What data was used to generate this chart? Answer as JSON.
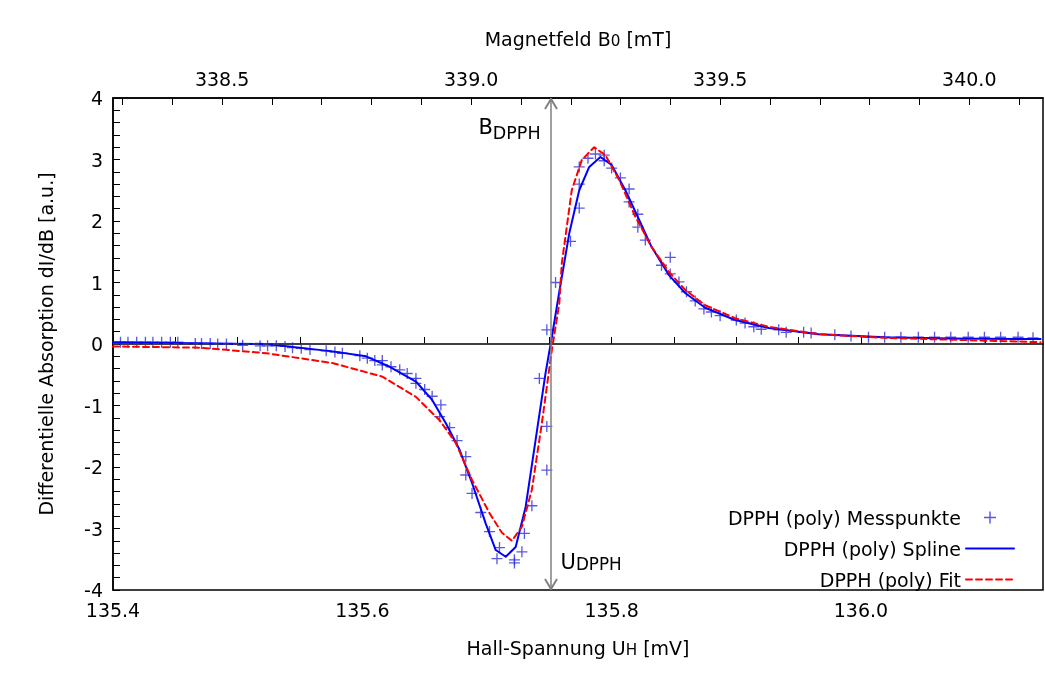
{
  "chart_data": {
    "type": "line",
    "xlabel": "Hall-Spannung U$_{H}$ [mV]",
    "x2label": "Magnetfeld B$_{0}$ [mT]",
    "ylabel": "Differentielle Absorption dI/dB [a.u.]",
    "xlim": [
      135.4,
      136.146
    ],
    "xticks": [
      135.4,
      {
        "value": 135.45,
        "label": null
      },
      {
        "value": 135.5,
        "label": null
      },
      {
        "value": 135.55,
        "label": null
      },
      135.6,
      {
        "value": 135.65,
        "label": null
      },
      {
        "value": 135.7,
        "label": null
      },
      {
        "value": 135.75,
        "label": null
      },
      135.8,
      {
        "value": 135.85,
        "label": null
      },
      {
        "value": 135.9,
        "label": null
      },
      {
        "value": 135.95,
        "label": null
      },
      {
        "value": 136,
        "label": "136.0"
      },
      {
        "value": 136.05,
        "label": null
      },
      {
        "value": 136.1,
        "label": null
      }
    ],
    "x2lim": [
      338.281,
      340.148
    ],
    "x2ticks": [
      {
        "value": 338.3,
        "label": null
      },
      {
        "value": 338.4,
        "label": null
      },
      338.5,
      {
        "value": 338.6,
        "label": null
      },
      {
        "value": 338.7,
        "label": null
      },
      {
        "value": 338.8,
        "label": null
      },
      {
        "value": 338.9,
        "label": null
      },
      {
        "value": 339,
        "label": "339.0"
      },
      {
        "value": 339.1,
        "label": null
      },
      {
        "value": 339.2,
        "label": null
      },
      {
        "value": 339.3,
        "label": null
      },
      {
        "value": 339.4,
        "label": null
      },
      339.5,
      {
        "value": 339.6,
        "label": null
      },
      {
        "value": 339.7,
        "label": null
      },
      {
        "value": 339.8,
        "label": null
      },
      {
        "value": 339.9,
        "label": null
      },
      {
        "value": 340,
        "label": "340.0"
      },
      {
        "value": 340.1,
        "label": null
      }
    ],
    "ylim": [
      -4,
      4
    ],
    "yticks": [
      -4,
      {
        "value": -3.8,
        "label": null
      },
      {
        "value": -3.6,
        "label": null
      },
      {
        "value": -3.4,
        "label": null
      },
      {
        "value": -3.2,
        "label": null
      },
      -3,
      {
        "value": -2.8,
        "label": null
      },
      {
        "value": -2.6,
        "label": null
      },
      {
        "value": -2.4,
        "label": null
      },
      {
        "value": -2.2,
        "label": null
      },
      -2,
      {
        "value": -1.8,
        "label": null
      },
      {
        "value": -1.6,
        "label": null
      },
      {
        "value": -1.4,
        "label": null
      },
      {
        "value": -1.2,
        "label": null
      },
      -1,
      {
        "value": -0.8,
        "label": null
      },
      {
        "value": -0.6,
        "label": null
      },
      {
        "value": -0.4,
        "label": null
      },
      {
        "value": -0.2,
        "label": null
      },
      0,
      {
        "value": 0.2,
        "label": null
      },
      {
        "value": 0.4,
        "label": null
      },
      {
        "value": 0.6,
        "label": null
      },
      {
        "value": 0.8,
        "label": null
      },
      1,
      {
        "value": 1.2,
        "label": null
      },
      {
        "value": 1.4,
        "label": null
      },
      {
        "value": 1.6,
        "label": null
      },
      {
        "value": 1.8,
        "label": null
      },
      2,
      {
        "value": 2.2,
        "label": null
      },
      {
        "value": 2.4,
        "label": null
      },
      {
        "value": 2.6,
        "label": null
      },
      {
        "value": 2.8,
        "label": null
      },
      3,
      {
        "value": 3.2,
        "label": null
      },
      {
        "value": 3.4,
        "label": null
      },
      {
        "value": 3.6,
        "label": null
      },
      {
        "value": 3.8,
        "label": null
      },
      4
    ],
    "grid": false,
    "legend": "bottom right",
    "ref_lines": [
      {
        "axis": "y",
        "value": 0,
        "color": "#404040",
        "line_style": "dashed"
      },
      {
        "axis": "x",
        "value": 135.751,
        "label": "U$_{DPPH}$",
        "color": "#808080",
        "line_style": "solid"
      }
    ],
    "annotations": [
      "B$_{DPPH}$"
    ],
    "series": [
      {
        "name": "DPPH (poly) Messpunkte",
        "type": "scatter",
        "marker": "cross",
        "color": "#3030d8",
        "x": [
          135.406,
          135.412,
          135.419,
          135.426,
          135.432,
          135.439,
          135.446,
          135.452,
          135.466,
          135.471,
          135.478,
          135.484,
          135.491,
          135.504,
          135.518,
          135.524,
          135.531,
          135.538,
          135.544,
          135.551,
          135.558,
          135.571,
          135.578,
          135.584,
          135.598,
          135.604,
          135.61,
          135.616,
          135.616,
          135.623,
          135.63,
          135.636,
          135.643,
          135.643,
          135.65,
          135.656,
          135.663,
          135.662,
          135.67,
          135.676,
          135.683,
          135.683,
          135.688,
          135.695,
          135.702,
          135.71,
          135.708,
          135.722,
          135.722,
          135.728,
          135.73,
          135.736,
          135.748,
          135.748,
          135.742,
          135.748,
          135.755,
          135.767,
          135.774,
          135.774,
          135.774,
          135.781,
          135.787,
          135.794,
          135.794,
          135.8,
          135.807,
          135.814,
          135.814,
          135.821,
          135.821,
          135.827,
          135.84,
          135.847,
          135.847,
          135.854,
          135.86,
          135.867,
          135.874,
          135.88,
          135.887,
          135.9,
          135.907,
          135.914,
          135.92,
          135.934,
          135.94,
          135.954,
          135.96,
          135.979,
          135.992,
          136.006,
          136.019,
          136.032,
          136.046,
          136.059,
          136.072,
          136.086,
          136.099,
          136.112,
          136.126,
          136.138
        ],
        "values": [
          0.03,
          0.03,
          0.03,
          0.03,
          0.03,
          0.03,
          0.03,
          0.03,
          0.01,
          0.01,
          0.01,
          0.0,
          0.0,
          -0.02,
          -0.03,
          -0.03,
          -0.03,
          -0.04,
          -0.06,
          -0.07,
          -0.09,
          -0.11,
          -0.13,
          -0.15,
          -0.19,
          -0.23,
          -0.27,
          -0.27,
          -0.34,
          -0.37,
          -0.42,
          -0.48,
          -0.56,
          -0.64,
          -0.74,
          -0.85,
          -0.99,
          -1.18,
          -1.36,
          -1.57,
          -1.83,
          -2.13,
          -2.43,
          -2.74,
          -3.05,
          -3.31,
          -3.49,
          -3.51,
          -3.56,
          -3.38,
          -3.08,
          -2.63,
          -2.05,
          -1.34,
          -0.56,
          0.23,
          1.0,
          1.67,
          2.21,
          2.6,
          2.88,
          3.02,
          3.09,
          3.07,
          2.98,
          2.86,
          2.7,
          2.52,
          2.31,
          2.11,
          1.9,
          1.69,
          1.28,
          1.41,
          1.14,
          1.01,
          0.85,
          0.7,
          0.57,
          0.52,
          0.46,
          0.39,
          0.34,
          0.28,
          0.24,
          0.23,
          0.19,
          0.19,
          0.18,
          0.15,
          0.13,
          0.11,
          0.11,
          0.11,
          0.11,
          0.11,
          0.11,
          0.11,
          0.11,
          0.11,
          0.11,
          0.1
        ]
      },
      {
        "name": "DPPH (poly) Spline",
        "type": "line",
        "marker": "none",
        "line_style": "solid",
        "color": "#0000ff",
        "x": [
          135.4,
          135.523,
          135.576,
          135.603,
          135.622,
          135.643,
          135.656,
          135.667,
          135.678,
          135.688,
          135.699,
          135.707,
          135.715,
          135.723,
          135.731,
          135.739,
          135.747,
          135.752,
          135.758,
          135.766,
          135.774,
          135.782,
          135.791,
          135.8,
          135.811,
          135.822,
          135.832,
          135.846,
          135.859,
          135.875,
          135.899,
          135.926,
          135.966,
          136.019,
          136.072,
          136.144
        ],
        "values": [
          0.03,
          0.0,
          -0.12,
          -0.2,
          -0.37,
          -0.61,
          -0.91,
          -1.29,
          -1.72,
          -2.26,
          -2.92,
          -3.35,
          -3.46,
          -3.3,
          -2.65,
          -1.56,
          -0.47,
          0.11,
          0.85,
          1.8,
          2.5,
          2.88,
          3.04,
          2.91,
          2.5,
          2.02,
          1.58,
          1.12,
          0.83,
          0.59,
          0.39,
          0.26,
          0.16,
          0.11,
          0.09,
          0.08
        ]
      },
      {
        "name": "DPPH (poly) Fit",
        "type": "line",
        "marker": "none",
        "line_style": "dashed",
        "color": "#ff0000",
        "x": [
          135.4,
          135.47,
          135.523,
          135.576,
          135.616,
          135.643,
          135.662,
          135.675,
          135.688,
          135.702,
          135.712,
          135.72,
          135.728,
          135.736,
          135.744,
          135.752,
          135.758,
          135.76,
          135.768,
          135.776,
          135.786,
          135.795,
          135.806,
          135.819,
          135.832,
          135.846,
          135.859,
          135.875,
          135.899,
          135.926,
          135.966,
          136.019,
          136.072,
          136.144
        ],
        "values": [
          -0.04,
          -0.06,
          -0.15,
          -0.31,
          -0.53,
          -0.86,
          -1.24,
          -1.61,
          -2.21,
          -2.75,
          -3.07,
          -3.2,
          -2.97,
          -2.37,
          -1.29,
          -0.1,
          0.66,
          1.31,
          2.5,
          2.99,
          3.2,
          3.07,
          2.67,
          2.07,
          1.58,
          1.17,
          0.88,
          0.63,
          0.42,
          0.28,
          0.16,
          0.1,
          0.07,
          0.03
        ]
      }
    ]
  }
}
